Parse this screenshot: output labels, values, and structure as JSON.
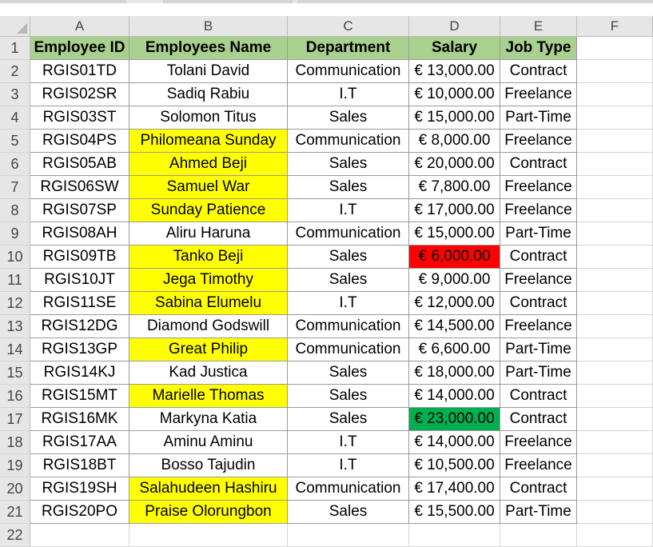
{
  "columns": [
    "A",
    "B",
    "C",
    "D",
    "E",
    "F"
  ],
  "headers": [
    "Employee ID",
    "Employees Name",
    "Department",
    "Salary",
    "Job Type"
  ],
  "rows": [
    {
      "num": "2",
      "id": "RGIS01TD",
      "name": "Tolani David",
      "dept": "Communication",
      "salary": "€ 13,000.00",
      "job": "Contract",
      "name_fill": "",
      "salary_fill": ""
    },
    {
      "num": "3",
      "id": "RGIS02SR",
      "name": "Sadiq Rabiu",
      "dept": "I.T",
      "salary": "€ 10,000.00",
      "job": "Freelance",
      "name_fill": "",
      "salary_fill": ""
    },
    {
      "num": "4",
      "id": "RGIS03ST",
      "name": "Solomon Titus",
      "dept": "Sales",
      "salary": "€ 15,000.00",
      "job": "Part-Time",
      "name_fill": "",
      "salary_fill": ""
    },
    {
      "num": "5",
      "id": "RGIS04PS",
      "name": "Philomeana Sunday",
      "dept": "Communication",
      "salary": "€ 8,000.00",
      "job": "Freelance",
      "name_fill": "yellow",
      "salary_fill": ""
    },
    {
      "num": "6",
      "id": "RGIS05AB",
      "name": "Ahmed Beji",
      "dept": "Sales",
      "salary": "€ 20,000.00",
      "job": "Contract",
      "name_fill": "yellow",
      "salary_fill": ""
    },
    {
      "num": "7",
      "id": "RGIS06SW",
      "name": "Samuel War",
      "dept": "Sales",
      "salary": "€ 7,800.00",
      "job": "Freelance",
      "name_fill": "yellow",
      "salary_fill": ""
    },
    {
      "num": "8",
      "id": "RGIS07SP",
      "name": "Sunday Patience",
      "dept": "I.T",
      "salary": "€ 17,000.00",
      "job": "Freelance",
      "name_fill": "yellow",
      "salary_fill": ""
    },
    {
      "num": "9",
      "id": "RGIS08AH",
      "name": "Aliru Haruna",
      "dept": "Communication",
      "salary": "€ 15,000.00",
      "job": "Part-Time",
      "name_fill": "",
      "salary_fill": ""
    },
    {
      "num": "10",
      "id": "RGIS09TB",
      "name": "Tanko Beji",
      "dept": "Sales",
      "salary": "€ 6,000.00",
      "job": "Contract",
      "name_fill": "yellow",
      "salary_fill": "red"
    },
    {
      "num": "11",
      "id": "RGIS10JT",
      "name": "Jega Timothy",
      "dept": "Sales",
      "salary": "€ 9,000.00",
      "job": "Freelance",
      "name_fill": "yellow",
      "salary_fill": ""
    },
    {
      "num": "12",
      "id": "RGIS11SE",
      "name": "Sabina Elumelu",
      "dept": "I.T",
      "salary": "€ 12,000.00",
      "job": "Contract",
      "name_fill": "yellow",
      "salary_fill": ""
    },
    {
      "num": "13",
      "id": "RGIS12DG",
      "name": "Diamond Godswill",
      "dept": "Communication",
      "salary": "€ 14,500.00",
      "job": "Freelance",
      "name_fill": "",
      "salary_fill": ""
    },
    {
      "num": "14",
      "id": "RGIS13GP",
      "name": "Great Philip",
      "dept": "Communication",
      "salary": "€ 6,600.00",
      "job": "Part-Time",
      "name_fill": "yellow",
      "salary_fill": ""
    },
    {
      "num": "15",
      "id": "RGIS14KJ",
      "name": "Kad Justica",
      "dept": "Sales",
      "salary": "€ 18,000.00",
      "job": "Part-Time",
      "name_fill": "",
      "salary_fill": ""
    },
    {
      "num": "16",
      "id": "RGIS15MT",
      "name": "Marielle Thomas",
      "dept": "Sales",
      "salary": "€ 14,000.00",
      "job": "Contract",
      "name_fill": "yellow",
      "salary_fill": ""
    },
    {
      "num": "17",
      "id": "RGIS16MK",
      "name": "Markyna Katia",
      "dept": "Sales",
      "salary": "€ 23,000.00",
      "job": "Contract",
      "name_fill": "",
      "salary_fill": "green"
    },
    {
      "num": "18",
      "id": "RGIS17AA",
      "name": "Aminu Aminu",
      "dept": "I.T",
      "salary": "€ 14,000.00",
      "job": "Freelance",
      "name_fill": "",
      "salary_fill": ""
    },
    {
      "num": "19",
      "id": "RGIS18BT",
      "name": "Bosso Tajudin",
      "dept": "I.T",
      "salary": "€ 10,500.00",
      "job": "Freelance",
      "name_fill": "",
      "salary_fill": ""
    },
    {
      "num": "20",
      "id": "RGIS19SH",
      "name": "Salahudeen Hashiru",
      "dept": "Communication",
      "salary": "€ 17,400.00",
      "job": "Contract",
      "name_fill": "yellow",
      "salary_fill": ""
    },
    {
      "num": "21",
      "id": "RGIS20PO",
      "name": "Praise Olorungbon",
      "dept": "Sales",
      "salary": "€ 15,500.00",
      "job": "Part-Time",
      "name_fill": "yellow",
      "salary_fill": ""
    }
  ],
  "header_row_num": "1",
  "trailing_rows": [
    "22"
  ],
  "colors": {
    "header_fill": "#a9d08e",
    "yellow": "#ffff00",
    "red": "#ff0000",
    "green": "#00b050"
  }
}
